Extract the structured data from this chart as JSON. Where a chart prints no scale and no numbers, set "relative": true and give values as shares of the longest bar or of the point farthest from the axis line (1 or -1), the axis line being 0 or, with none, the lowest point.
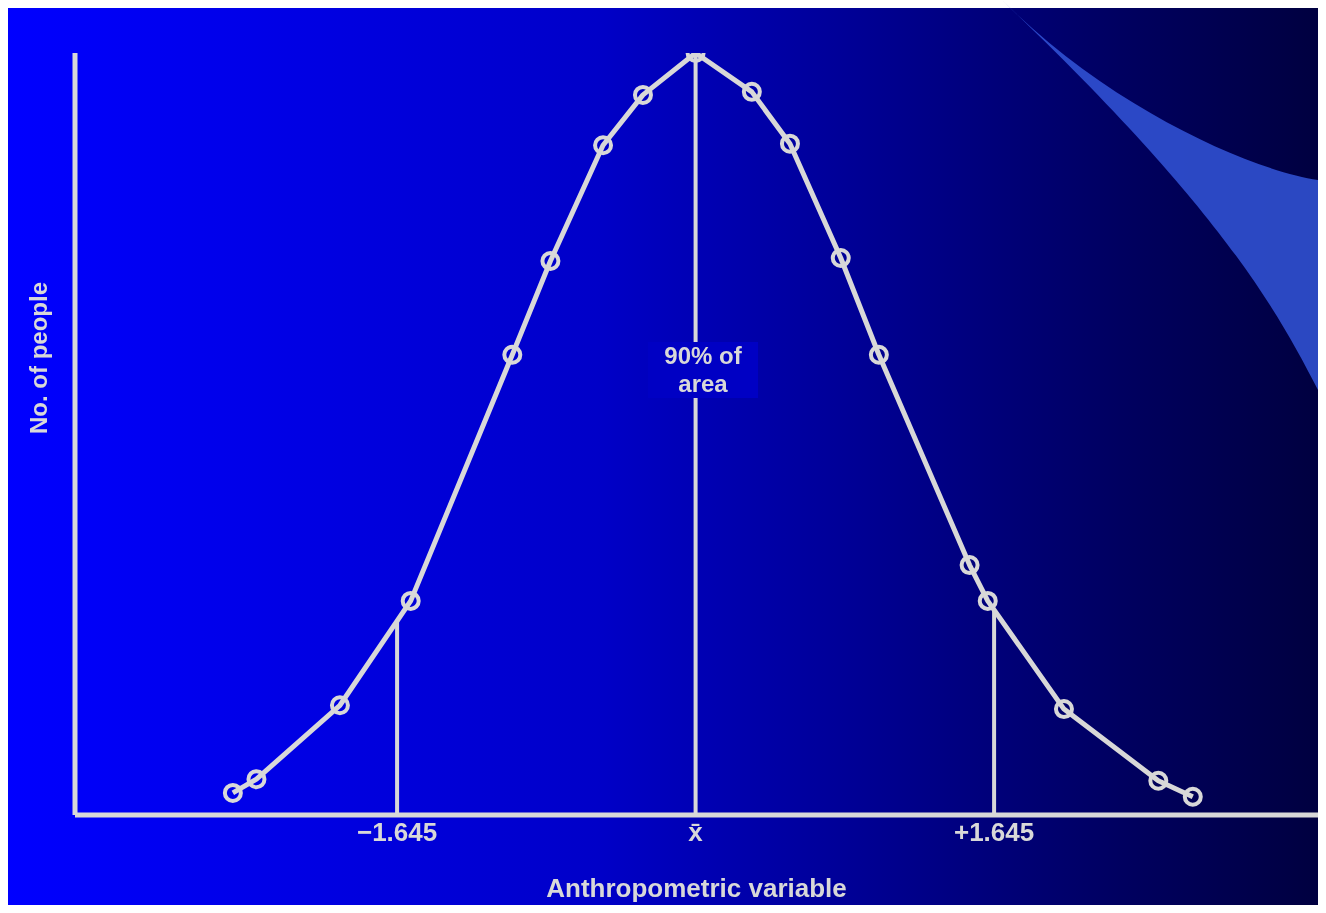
{
  "chart_data": {
    "type": "line",
    "xlabel": "Anthropometric variable",
    "ylabel": "No. of people",
    "relative": true,
    "x": [
      -2.55,
      -2.42,
      -1.96,
      -1.57,
      -1.01,
      -0.8,
      -0.51,
      -0.29,
      0,
      0.31,
      0.52,
      0.8,
      1.01,
      1.51,
      1.61,
      2.03,
      2.55,
      2.74
    ],
    "series": [
      {
        "color": "#d8d8d8",
        "values": [
          0.029,
          0.047,
          0.144,
          0.281,
          0.604,
          0.727,
          0.879,
          0.945,
          1,
          0.949,
          0.881,
          0.731,
          0.604,
          0.328,
          0.281,
          0.139,
          0.045,
          0.024
        ]
      }
    ],
    "marker": "circle",
    "line_style": "solid",
    "grid": false,
    "xlim": [
      -3.42,
      3.43
    ],
    "xticks": [
      {
        "value": -1.645,
        "label": "−1.645"
      },
      {
        "value": 0,
        "label": "x̄"
      },
      {
        "value": 1.645,
        "label": "+1.645"
      }
    ],
    "ref_lines": [
      {
        "axis": "x",
        "value": -1.645,
        "color": "#d8d8d8"
      },
      {
        "axis": "x",
        "value": 0,
        "color": "#d8d8d8"
      },
      {
        "axis": "x",
        "value": 1.645,
        "color": "#d8d8d8"
      }
    ],
    "annotations": [
      "90% of area"
    ]
  }
}
